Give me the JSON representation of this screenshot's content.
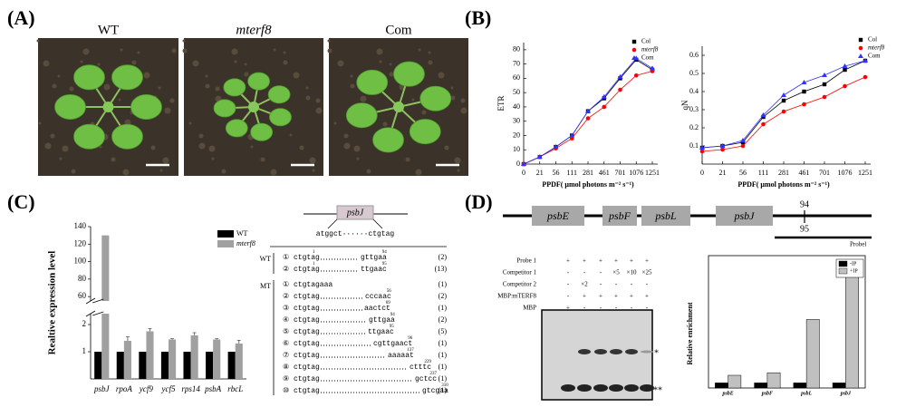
{
  "panel_labels": [
    "(A)",
    "(B)",
    "(C)",
    "(D)"
  ],
  "photos": {
    "labels": [
      "WT",
      "mterf8",
      "Com"
    ]
  },
  "chart_data": [
    {
      "type": "line",
      "ylabel": "ETR",
      "xlabel": "PPDF( μmol photons m⁻² s⁻¹)",
      "categories": [
        "0",
        "21",
        "56",
        "111",
        "281",
        "461",
        "701",
        "1076",
        "1251"
      ],
      "series": [
        {
          "name": "Col",
          "color": "#000000",
          "marker": "square",
          "values": [
            0,
            5,
            12,
            20,
            37,
            46,
            60,
            73,
            66
          ]
        },
        {
          "name": "mterf8",
          "color": "#ff0000",
          "marker": "circle",
          "values": [
            0,
            5,
            11,
            18,
            32,
            40,
            52,
            62,
            65
          ]
        },
        {
          "name": "Com",
          "color": "#3333ff",
          "marker": "triangle",
          "values": [
            0,
            5,
            12,
            20,
            37,
            47,
            61,
            74,
            67
          ]
        }
      ],
      "ylim": [
        0,
        85
      ],
      "yticks": [
        0,
        10,
        20,
        30,
        40,
        50,
        60,
        70,
        80
      ]
    },
    {
      "type": "line",
      "ylabel": "qN",
      "xlabel": "PPDF( μmol photons m⁻² s⁻¹)",
      "categories": [
        "0",
        "21",
        "56",
        "111",
        "281",
        "461",
        "701",
        "1076",
        "1251"
      ],
      "series": [
        {
          "name": "Col",
          "color": "#000000",
          "marker": "square",
          "values": [
            0.09,
            0.1,
            0.12,
            0.26,
            0.35,
            0.4,
            0.44,
            0.52,
            0.57
          ]
        },
        {
          "name": "mterf8",
          "color": "#ff0000",
          "marker": "circle",
          "values": [
            0.07,
            0.08,
            0.1,
            0.22,
            0.29,
            0.33,
            0.37,
            0.43,
            0.48
          ]
        },
        {
          "name": "Com",
          "color": "#3333ff",
          "marker": "triangle",
          "values": [
            0.09,
            0.1,
            0.13,
            0.27,
            0.38,
            0.45,
            0.49,
            0.54,
            0.57
          ]
        }
      ],
      "ylim": [
        0,
        0.65
      ],
      "yticks": [
        0.1,
        0.2,
        0.3,
        0.4,
        0.5,
        0.6
      ]
    },
    {
      "type": "bar",
      "ylabel": "Realtive expression level",
      "categories": [
        "psbJ",
        "rpoA",
        "ycf9",
        "ycf5",
        "rps14",
        "psbA",
        "rbcL"
      ],
      "series": [
        {
          "name": "WT",
          "color": "#000000",
          "values": [
            1,
            1,
            1,
            1,
            1,
            1,
            1
          ]
        },
        {
          "name": "mterf8",
          "color": "#a0a0a0",
          "values": [
            130,
            1.4,
            1.75,
            1.45,
            1.6,
            1.45,
            1.3
          ],
          "errors": [
            0,
            0.15,
            0.1,
            0.03,
            0.1,
            0.03,
            0.12
          ]
        }
      ],
      "ylim": [
        0,
        140
      ],
      "ybreak": [
        2.4,
        55
      ],
      "yticks": [
        1,
        2,
        60,
        80,
        100,
        120,
        140
      ]
    },
    {
      "type": "bar",
      "ylabel": "Relative enrichment",
      "categories": [
        "psbE",
        "psbF",
        "psbL",
        "psbJ"
      ],
      "series": [
        {
          "name": "-IP",
          "color": "#000000",
          "values": [
            1,
            1,
            1,
            1
          ]
        },
        {
          "name": "+IP",
          "color": "#c0c0c0",
          "values": [
            2.5,
            3,
            13.5,
            23.5
          ]
        }
      ],
      "ylim": [
        0,
        25
      ]
    }
  ],
  "sequence": {
    "gene": "psbJ",
    "ends": "atggct······ctgtag",
    "groups": [
      {
        "label": "WT",
        "rows": [
          {
            "num": "①",
            "start": "ctgtag",
            "start_pos": "1",
            "end": "gttgaa",
            "pos": "94",
            "count": "(2)"
          },
          {
            "num": "②",
            "start": "ctgtag",
            "start_pos": "1",
            "end": "ttgaac",
            "pos": "95",
            "count": "(13)"
          }
        ]
      },
      {
        "label": "MT",
        "rows": [
          {
            "num": "①",
            "start": "ctgtagaaa",
            "count": "(1)"
          },
          {
            "num": "②",
            "start": "ctgtag",
            "end": "cccaac",
            "pos": "56",
            "count": "(2)"
          },
          {
            "num": "③",
            "start": "ctgtag",
            "end": "aactct",
            "pos": "69",
            "count": "(1)"
          },
          {
            "num": "④",
            "start": "ctgtag",
            "end": "gttgaa",
            "pos": "94",
            "count": "(2)"
          },
          {
            "num": "⑤",
            "start": "ctgtag",
            "end": "ttgaac",
            "pos": "95",
            "count": "(5)"
          },
          {
            "num": "⑥",
            "start": "ctgtag",
            "end": "cgttgaact",
            "pos": "96",
            "count": "(1)"
          },
          {
            "num": "⑦",
            "start": "ctgtag",
            "end": "aaaaat",
            "pos": "137",
            "count": "(1)"
          },
          {
            "num": "⑧",
            "start": "ctgtag",
            "end": "ctttc",
            "pos": "229",
            "count": "(1)"
          },
          {
            "num": "⑨",
            "start": "ctgtag",
            "end": "gctcc",
            "pos": "237",
            "count": "(1)"
          },
          {
            "num": "⑩",
            "start": "ctgtag",
            "end": "gtcgaa",
            "pos": "310",
            "count": "(1)"
          }
        ]
      }
    ]
  },
  "gene_map": {
    "genes": [
      "psbE",
      "psbF",
      "psbL",
      "psbJ"
    ],
    "site_top": "94",
    "site_bottom": "95",
    "probe": "Probel"
  },
  "emsa": {
    "rows": [
      {
        "label": "Probe 1",
        "lanes": [
          "+",
          "+",
          "+",
          "+",
          "+",
          "+"
        ]
      },
      {
        "label": "Competitor 1",
        "lanes": [
          "-",
          "-",
          "-",
          "×5",
          "×10",
          "×25"
        ]
      },
      {
        "label": "Competitor 2",
        "lanes": [
          "-",
          "×2",
          "-",
          "-",
          "-",
          "-"
        ]
      },
      {
        "label": "MBP:mTERF8",
        "lanes": [
          "-",
          "+",
          "+",
          "+",
          "+",
          "+"
        ]
      },
      {
        "label": "MBP",
        "lanes": [
          "+",
          "-",
          "-",
          "-",
          "-",
          "-"
        ]
      }
    ],
    "markers": [
      "*",
      "**"
    ]
  }
}
